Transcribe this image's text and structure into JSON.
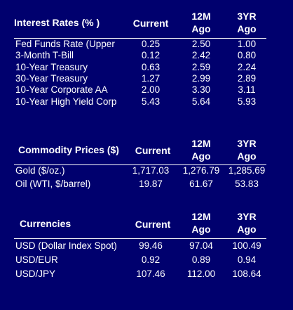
{
  "interest": {
    "title": "Interest Rates (% )",
    "col_current": "Current",
    "col_12m": "12M\nAgo",
    "col_3yr": "3YR\nAgo",
    "rows": [
      {
        "label": "Fed Funds Rate (Upper",
        "current": "0.25",
        "m12": "2.50",
        "y3": "1.00"
      },
      {
        "label": "3-Month T-Bill",
        "current": "0.12",
        "m12": "2.42",
        "y3": "0.80"
      },
      {
        "label": "10-Year Treasury",
        "current": "0.63",
        "m12": "2.59",
        "y3": "2.24"
      },
      {
        "label": "30-Year Treasury",
        "current": "1.27",
        "m12": "2.99",
        "y3": "2.89"
      },
      {
        "label": "10-Year Corporate AA",
        "current": "2.00",
        "m12": "3.30",
        "y3": "3.11"
      },
      {
        "label": "10-Year High Yield Corp",
        "current": "5.43",
        "m12": "5.64",
        "y3": "5.93"
      }
    ]
  },
  "commodity": {
    "title": "Commodity Prices ($)",
    "col_current": "Current",
    "col_12m": "12M\nAgo",
    "col_3yr": "3YR\nAgo",
    "rows": [
      {
        "label": "Gold    ($/oz.)",
        "current": "1,717.03",
        "m12": "1,276.79",
        "y3": "1,285.69"
      },
      {
        "label": "Oil (WTI, $/barrel)",
        "current": "19.87",
        "m12": "61.67",
        "y3": "53.83"
      }
    ]
  },
  "currencies": {
    "title": "Currencies",
    "col_current": "Current",
    "col_12m": "12M\nAgo",
    "col_3yr": "3YR\nAgo",
    "rows": [
      {
        "label": "USD (Dollar Index Spot)",
        "current": "99.46",
        "m12": "97.04",
        "y3": "100.49"
      },
      {
        "label": "USD/EUR",
        "current": "0.92",
        "m12": "0.89",
        "y3": "0.94"
      },
      {
        "label": "USD/JPY",
        "current": "107.46",
        "m12": "112.00",
        "y3": "108.64"
      }
    ]
  },
  "colors": {
    "background": "#00006e",
    "text": "#ffffff"
  }
}
